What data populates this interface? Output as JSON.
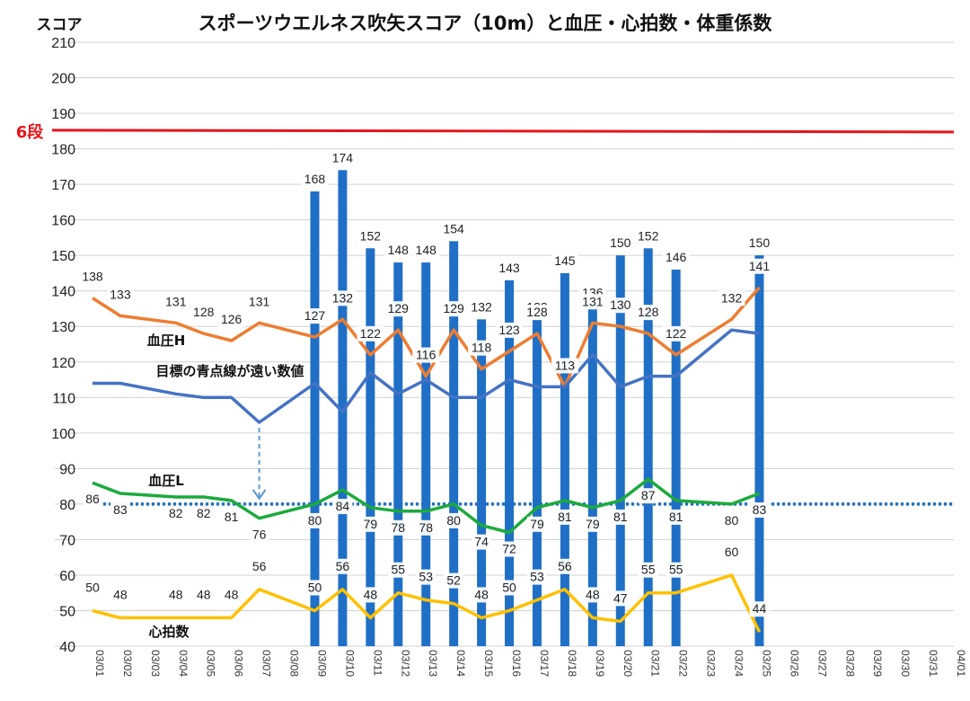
{
  "chart_data": {
    "type": "bar+line",
    "title": "スポーツウエルネス吹矢スコア（10m）と血圧・心拍数・体重係数",
    "ylabel": "スコア",
    "ylim": [
      40,
      210
    ],
    "yticks": [
      40,
      50,
      60,
      70,
      80,
      90,
      100,
      110,
      120,
      130,
      140,
      150,
      160,
      170,
      180,
      190,
      200,
      210
    ],
    "grid": true,
    "categories": [
      "03/01",
      "03/02",
      "03/03",
      "03/04",
      "03/05",
      "03/06",
      "03/07",
      "03/08",
      "03/09",
      "03/10",
      "03/11",
      "03/12",
      "03/13",
      "03/14",
      "03/15",
      "03/16",
      "03/17",
      "03/18",
      "03/19",
      "03/20",
      "03/21",
      "03/22",
      "03/23",
      "03/24",
      "03/25",
      "03/26",
      "03/27",
      "03/28",
      "03/29",
      "03/30",
      "03/31",
      "04/01"
    ],
    "bars": {
      "color": "#1F6FC6",
      "values": [
        null,
        null,
        null,
        null,
        null,
        null,
        null,
        null,
        168,
        174,
        152,
        148,
        148,
        154,
        132,
        143,
        132,
        145,
        136,
        150,
        152,
        146,
        null,
        null,
        150,
        null,
        null,
        null,
        null,
        null,
        null,
        null
      ]
    },
    "series": [
      {
        "name": "血圧H",
        "color": "#ED7D31",
        "values": [
          138,
          133,
          null,
          131,
          128,
          126,
          131,
          null,
          127,
          132,
          122,
          129,
          116,
          129,
          118,
          123,
          128,
          113,
          131,
          130,
          128,
          122,
          null,
          132,
          141,
          null,
          null,
          null,
          null,
          null,
          null,
          null
        ]
      },
      {
        "name": "目標の青点線が遠い数値",
        "color": "#4472C4",
        "values": [
          114,
          114,
          null,
          111,
          110,
          110,
          103,
          null,
          114,
          106,
          117,
          111,
          115,
          110,
          110,
          115,
          113,
          113,
          122,
          113,
          116,
          116,
          null,
          129,
          128,
          null,
          null,
          null,
          null,
          null,
          null,
          null
        ]
      },
      {
        "name": "血圧L",
        "color": "#1BAA3C",
        "values": [
          86,
          83,
          null,
          82,
          82,
          81,
          76,
          null,
          80,
          84,
          79,
          78,
          78,
          80,
          74,
          72,
          79,
          81,
          79,
          81,
          87,
          81,
          null,
          80,
          83,
          null,
          null,
          null,
          null,
          null,
          null,
          null
        ]
      },
      {
        "name": "心拍数",
        "color": "#FFC000",
        "values": [
          50,
          48,
          null,
          48,
          48,
          48,
          56,
          null,
          50,
          56,
          48,
          55,
          53,
          52,
          48,
          50,
          53,
          56,
          48,
          47,
          55,
          55,
          null,
          60,
          44,
          null,
          null,
          null,
          null,
          null,
          null,
          null
        ]
      }
    ],
    "reference_lines": [
      {
        "label": "6段",
        "y": 185,
        "color": "#E8141B",
        "style": "solid"
      },
      {
        "label": "",
        "y": 80,
        "color": "#1F6FC6",
        "style": "dotted"
      }
    ]
  }
}
